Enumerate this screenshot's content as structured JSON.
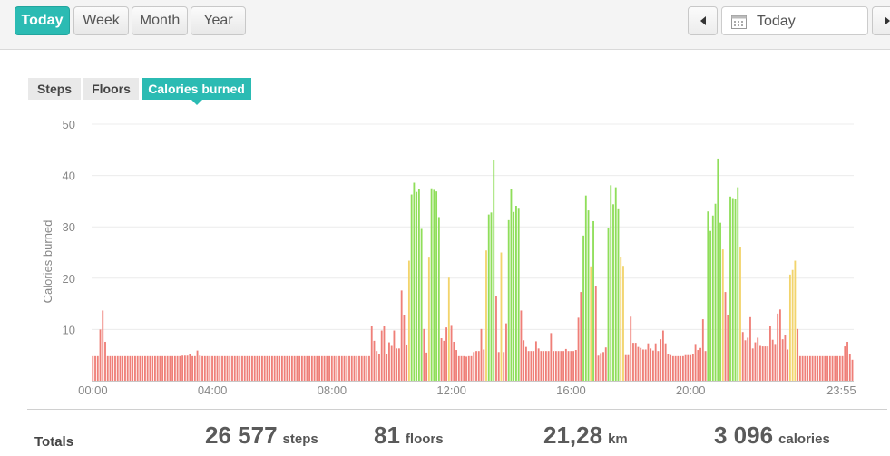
{
  "period_tabs": [
    {
      "label": "Today",
      "active": true
    },
    {
      "label": "Week",
      "active": false
    },
    {
      "label": "Month",
      "active": false
    },
    {
      "label": "Year",
      "active": false
    }
  ],
  "date_nav": {
    "prev_icon": "triangle-left",
    "next_icon": "triangle-right",
    "calendar_icon": "calendar",
    "date_label": "Today"
  },
  "metric_tabs": [
    {
      "label": "Steps",
      "active": false
    },
    {
      "label": "Floors",
      "active": false
    },
    {
      "label": "Calories burned",
      "active": true
    }
  ],
  "colors": {
    "accent": "#2bbbb3",
    "low": "#ef7f78",
    "mid": "#f2d46c",
    "high": "#8fde5a"
  },
  "chart_data": {
    "type": "bar",
    "ylabel": "Calories burned",
    "xlabel": "",
    "ylim": [
      0,
      50
    ],
    "yticks": [
      10,
      20,
      30,
      40,
      50
    ],
    "xticks": [
      "00:00",
      "04:00",
      "08:00",
      "12:00",
      "16:00",
      "20:00",
      "23:55"
    ],
    "interval_minutes": 5,
    "grid": true,
    "values": [
      4.8,
      4.8,
      4.8,
      10,
      13.7,
      7.6,
      4.8,
      4.8,
      4.8,
      4.8,
      4.8,
      4.8,
      4.8,
      4.8,
      4.8,
      4.8,
      4.8,
      4.8,
      4.8,
      4.8,
      4.8,
      4.8,
      4.8,
      4.8,
      4.8,
      4.8,
      4.8,
      4.8,
      4.8,
      4.8,
      4.8,
      4.8,
      4.8,
      4.8,
      4.8,
      4.8,
      4.9,
      4.9,
      4.9,
      5.2,
      4.8,
      4.8,
      5.9,
      4.9,
      4.8,
      4.8,
      4.8,
      4.8,
      4.8,
      4.8,
      4.8,
      4.8,
      4.8,
      4.8,
      4.8,
      4.8,
      4.8,
      4.8,
      4.8,
      4.8,
      4.8,
      4.8,
      4.8,
      4.8,
      4.8,
      4.8,
      4.8,
      4.8,
      4.8,
      4.8,
      4.8,
      4.8,
      4.8,
      4.8,
      4.8,
      4.8,
      4.8,
      4.8,
      4.8,
      4.8,
      4.8,
      4.8,
      4.8,
      4.8,
      4.8,
      4.8,
      4.8,
      4.8,
      4.8,
      4.8,
      4.8,
      4.8,
      4.8,
      4.8,
      4.8,
      4.8,
      4.8,
      4.8,
      4.8,
      4.8,
      4.8,
      4.8,
      4.8,
      4.8,
      4.8,
      4.8,
      4.8,
      4.8,
      4.8,
      4.8,
      4.8,
      4.8,
      10.6,
      7.8,
      5.8,
      5.3,
      9.8,
      10.6,
      5.2,
      7.5,
      6.8,
      9.8,
      6.3,
      6.3,
      17.6,
      12.8,
      6.9,
      23.4,
      36.3,
      38.6,
      36.8,
      37.3,
      29.6,
      10.1,
      5.5,
      24,
      37.5,
      37.2,
      36.9,
      31.9,
      8.3,
      7.8,
      10.4,
      20.1,
      10.7,
      7.6,
      6,
      4.8,
      4.8,
      4.8,
      4.7,
      4.8,
      4.8,
      5.6,
      5.8,
      5.8,
      10.1,
      6.1,
      25.4,
      32.4,
      32.8,
      43.1,
      16.6,
      5.6,
      25,
      5.6,
      11.2,
      31.3,
      37.3,
      32.9,
      34.1,
      33.7,
      13.7,
      7.9,
      6.6,
      5.8,
      5.8,
      5.8,
      7.7,
      6.3,
      5.8,
      5.8,
      5.8,
      5.8,
      9.3,
      5.8,
      5.8,
      5.8,
      5.8,
      5.8,
      6.2,
      5.8,
      5.8,
      5.8,
      6,
      12.3,
      17.3,
      28.3,
      36.1,
      33.2,
      22.3,
      31.1,
      18.5,
      4.9,
      5.4,
      5.6,
      6.5,
      29.8,
      38.1,
      34.4,
      37.7,
      33.6,
      24.1,
      22.4,
      5,
      5,
      12.5,
      7.4,
      7.4,
      6.6,
      6.4,
      6.1,
      6.1,
      7.3,
      6.3,
      5.9,
      7.3,
      5.8,
      8.1,
      9.8,
      7.3,
      5.2,
      5,
      4.8,
      4.8,
      4.8,
      4.8,
      4.8,
      5,
      5,
      5,
      5.3,
      7,
      6,
      6.4,
      12,
      5.8,
      33,
      29.2,
      32.2,
      34.5,
      43.3,
      30.8,
      25.6,
      17.3,
      12.9,
      35.9,
      35.6,
      35.4,
      37.7,
      26,
      9.5,
      7.9,
      8.4,
      12.4,
      6.3,
      7.5,
      8.4,
      6.8,
      6.7,
      6.7,
      6.7,
      10.6,
      8,
      7,
      13.1,
      13.9,
      8.1,
      8.9,
      6.1,
      20.7,
      21.6,
      23.4,
      10.1,
      4.8,
      4.8,
      4.8,
      4.8,
      4.8,
      4.8,
      4.8,
      4.8,
      4.8,
      4.8,
      4.8,
      4.8,
      4.8,
      4.8,
      4.8,
      4.8,
      4.8,
      4.8,
      6.7,
      7.6,
      5.2,
      4.1
    ]
  },
  "totals": {
    "label": "Totals",
    "steps": {
      "value": "26 577",
      "unit": "steps"
    },
    "floors": {
      "value": "81",
      "unit": "floors"
    },
    "distance": {
      "value": "21,28",
      "unit": "km"
    },
    "calories": {
      "value": "3 096",
      "unit": "calories"
    }
  }
}
